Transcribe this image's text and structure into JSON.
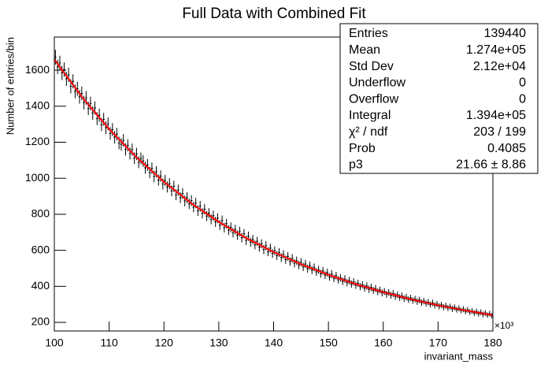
{
  "chart_data": {
    "type": "histogram",
    "title": "Full Data with Combined Fit",
    "x_label": "invariant_mass",
    "y_label": "Number of entries/bin",
    "x_multiplier": "×10³",
    "color": "#000000",
    "xlim": [
      100,
      180
    ],
    "ylim": [
      152,
      1784
    ],
    "xticks": [
      100,
      110,
      120,
      130,
      140,
      150,
      160,
      170,
      180
    ],
    "yticks": [
      200,
      400,
      600,
      800,
      1000,
      1200,
      1400,
      1600
    ],
    "bins": [
      100,
      100.4,
      100.8,
      101.2,
      101.6,
      102,
      102.4,
      102.8,
      103.2,
      103.6,
      104,
      104.4,
      104.8,
      105.2,
      105.6,
      106,
      106.4,
      106.8,
      107.2,
      107.6,
      108,
      108.4,
      108.8,
      109.2,
      109.6,
      110,
      110.4,
      110.8,
      111.2,
      111.6,
      112,
      112.4,
      112.8,
      113.2,
      113.6,
      114,
      114.4,
      114.8,
      115.2,
      115.6,
      116,
      116.4,
      116.8,
      117.2,
      117.6,
      118,
      118.4,
      118.8,
      119.2,
      119.6,
      120,
      120.4,
      120.8,
      121.2,
      121.6,
      122,
      122.4,
      122.8,
      123.2,
      123.6,
      124,
      124.4,
      124.8,
      125.2,
      125.6,
      126,
      126.4,
      126.8,
      127.2,
      127.6,
      128,
      128.4,
      128.8,
      129.2,
      129.6,
      130,
      130.4,
      130.8,
      131.2,
      131.6,
      132,
      132.4,
      132.8,
      133.2,
      133.6,
      134,
      134.4,
      134.8,
      135.2,
      135.6,
      136,
      136.4,
      136.8,
      137.2,
      137.6,
      138,
      138.4,
      138.8,
      139.2,
      139.6,
      140,
      140.4,
      140.8,
      141.2,
      141.6,
      142,
      142.4,
      142.8,
      143.2,
      143.6,
      144,
      144.4,
      144.8,
      145.2,
      145.6,
      146,
      146.4,
      146.8,
      147.2,
      147.6,
      148,
      148.4,
      148.8,
      149.2,
      149.6,
      150,
      150.4,
      150.8,
      151.2,
      151.6,
      152,
      152.4,
      152.8,
      153.2,
      153.6,
      154,
      154.4,
      154.8,
      155.2,
      155.6,
      156,
      156.4,
      156.8,
      157.2,
      157.6,
      158,
      158.4,
      158.8,
      159.2,
      159.6,
      160,
      160.4,
      160.8,
      161.2,
      161.6,
      162,
      162.4,
      162.8,
      163.2,
      163.6,
      164,
      164.4,
      164.8,
      165.2,
      165.6,
      166,
      166.4,
      166.8,
      167.2,
      167.6,
      168,
      168.4,
      168.8,
      169.2,
      169.6,
      170,
      170.4,
      170.8,
      171.2,
      171.6,
      172,
      172.4,
      172.8,
      173.2,
      173.6,
      174,
      174.4,
      174.8,
      175.2,
      175.6,
      176,
      176.4,
      176.8,
      177.2,
      177.6,
      178,
      178.4,
      178.8,
      179.2,
      179.6,
      180
    ],
    "values": [
      1672,
      1618,
      1640,
      1585,
      1603,
      1552,
      1574,
      1510,
      1538,
      1482,
      1497,
      1452,
      1471,
      1420,
      1446,
      1388,
      1415,
      1362,
      1390,
      1331,
      1350,
      1298,
      1327,
      1281,
      1302,
      1249,
      1270,
      1228,
      1245,
      1196,
      1188,
      1210,
      1160,
      1183,
      1138,
      1159,
      1112,
      1135,
      1089,
      1110,
      1096,
      1058,
      1074,
      1032,
      1055,
      1010,
      1036,
      990,
      1012,
      968,
      988,
      952,
      970,
      930,
      955,
      908,
      934,
      892,
      915,
      874,
      892,
      858,
      876,
      840,
      862,
      820,
      845,
      805,
      828,
      790,
      806,
      772,
      792,
      758,
      778,
      740,
      765,
      726,
      748,
      712,
      728,
      698,
      715,
      684,
      704,
      670,
      692,
      655,
      678,
      645,
      660,
      630,
      650,
      618,
      636,
      604,
      625,
      592,
      612,
      582,
      598,
      570,
      588,
      560,
      577,
      548,
      566,
      538,
      555,
      528,
      542,
      518,
      534,
      508,
      524,
      498,
      515,
      490,
      505,
      480,
      492,
      470,
      486,
      462,
      476,
      452,
      468,
      444,
      459,
      436,
      447,
      428,
      441,
      420,
      432,
      413,
      425,
      406,
      417,
      398,
      408,
      390,
      402,
      384,
      394,
      377,
      388,
      370,
      380,
      363,
      372,
      356,
      366,
      350,
      360,
      344,
      353,
      338,
      347,
      332,
      340,
      326,
      335,
      321,
      329,
      315,
      324,
      310,
      318,
      305,
      312,
      299,
      308,
      294,
      302,
      289,
      297,
      284,
      292,
      280,
      287,
      275,
      283,
      270,
      278,
      266,
      273,
      261,
      269,
      257,
      263,
      252,
      260,
      248,
      256,
      244,
      252,
      240,
      248,
      237
    ],
    "errors": [
      41,
      40,
      40,
      40,
      40,
      39,
      40,
      39,
      39,
      38,
      39,
      38,
      38,
      38,
      38,
      37,
      38,
      37,
      37,
      36,
      37,
      36,
      36,
      36,
      36,
      35,
      36,
      35,
      35,
      35,
      34,
      35,
      34,
      34,
      34,
      34,
      33,
      34,
      33,
      33,
      33,
      33,
      33,
      32,
      32,
      32,
      32,
      31,
      32,
      31,
      31,
      31,
      31,
      30,
      31,
      30,
      31,
      30,
      30,
      30,
      30,
      29,
      30,
      29,
      29,
      29,
      29,
      28,
      29,
      28,
      28,
      28,
      28,
      28,
      28,
      27,
      28,
      27,
      27,
      27,
      27,
      26,
      27,
      26,
      27,
      26,
      26,
      26,
      26,
      25,
      26,
      25,
      25,
      25,
      25,
      25,
      25,
      24,
      25,
      24,
      24,
      24,
      24,
      24,
      24,
      23,
      24,
      23,
      24,
      23,
      23,
      23,
      23,
      23,
      23,
      22,
      23,
      22,
      22,
      22,
      22,
      22,
      22,
      21,
      22,
      21,
      22,
      21,
      21,
      21,
      21,
      21,
      21,
      20,
      21,
      20,
      21,
      20,
      20,
      20,
      20,
      20,
      20,
      20,
      20,
      19,
      20,
      19,
      19,
      19,
      19,
      19,
      19,
      19,
      19,
      19,
      19,
      18,
      19,
      18,
      18,
      18,
      18,
      18,
      18,
      18,
      18,
      18,
      18,
      17,
      18,
      17,
      18,
      17,
      17,
      17,
      17,
      17,
      17,
      17,
      17,
      17,
      17,
      16,
      17,
      16,
      17,
      16,
      16,
      16,
      16,
      16,
      16,
      16,
      16,
      16,
      16,
      15,
      16,
      15
    ],
    "fit": {
      "color": "#ff0000",
      "x": [
        100,
        105,
        110,
        115,
        120,
        125,
        130,
        135,
        140,
        145,
        150,
        155,
        160,
        165,
        170,
        175,
        180
      ],
      "values": [
        1660,
        1453,
        1273,
        1116,
        980,
        861,
        758,
        668,
        590,
        523,
        464,
        412,
        368,
        329,
        295,
        266,
        240
      ]
    },
    "stats": [
      {
        "label": "Entries",
        "value": "139440"
      },
      {
        "label": "Mean",
        "value": "1.274e+05"
      },
      {
        "label": "Std Dev",
        "value": "2.12e+04"
      },
      {
        "label": "Underflow",
        "value": "0"
      },
      {
        "label": "Overflow",
        "value": "0"
      },
      {
        "label": "Integral",
        "value": "1.394e+05"
      },
      {
        "label": "χ² / ndf",
        "value": "203 / 199"
      },
      {
        "label": "Prob",
        "value": "0.4085"
      },
      {
        "label": "p3",
        "value": "21.66 ± 8.86"
      }
    ]
  }
}
